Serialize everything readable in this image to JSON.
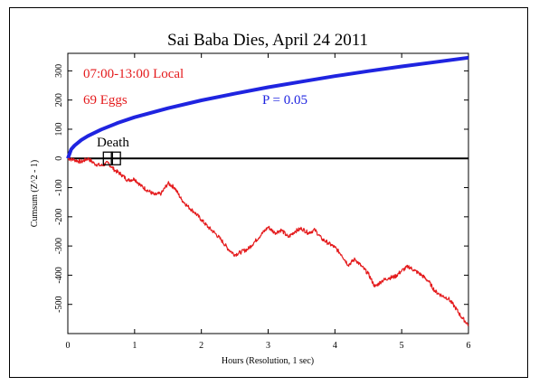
{
  "chart_data": {
    "type": "line",
    "title": "Sai Baba Dies, April 24 2011",
    "xlabel": "Hours (Resolution, 1 sec)",
    "ylabel": "Cumsum (Z^2 - 1)",
    "xlim": [
      0,
      6
    ],
    "ylim": [
      -600,
      360
    ],
    "x_ticks": [
      0,
      1,
      2,
      3,
      4,
      5,
      6
    ],
    "y_ticks": [
      -500,
      -400,
      -300,
      -200,
      -100,
      0,
      100,
      200,
      300
    ],
    "grid": false,
    "annotations": {
      "time_window": "07:00-13:00 Local",
      "eggs": "69 Eggs",
      "p_label": "P = 0.05",
      "event_label": "Death",
      "event_hours": [
        0.6,
        0.72
      ]
    },
    "colors": {
      "data_line": "#e41a1c",
      "envelope": "#1f24e0",
      "zero_line": "#000000",
      "text_red": "#e41a1c",
      "text_blue": "#1f24e0"
    },
    "series": [
      {
        "role": "data",
        "x": [
          0,
          0.1,
          0.2,
          0.3,
          0.4,
          0.5,
          0.6,
          0.7,
          0.8,
          0.9,
          1.0,
          1.1,
          1.2,
          1.3,
          1.4,
          1.5,
          1.6,
          1.7,
          1.8,
          1.9,
          2.0,
          2.1,
          2.2,
          2.3,
          2.4,
          2.5,
          2.6,
          2.7,
          2.8,
          2.9,
          3.0,
          3.1,
          3.2,
          3.3,
          3.4,
          3.5,
          3.6,
          3.7,
          3.8,
          3.9,
          4.0,
          4.1,
          4.2,
          4.3,
          4.4,
          4.5,
          4.6,
          4.7,
          4.8,
          4.9,
          5.0,
          5.1,
          5.2,
          5.3,
          5.4,
          5.5,
          5.6,
          5.7,
          5.8,
          5.9,
          6.0
        ],
        "y": [
          0,
          -5,
          -12,
          0,
          -18,
          -25,
          -15,
          -40,
          -55,
          -75,
          -70,
          -95,
          -110,
          -125,
          -120,
          -85,
          -100,
          -140,
          -165,
          -185,
          -210,
          -235,
          -255,
          -280,
          -310,
          -330,
          -320,
          -310,
          -285,
          -260,
          -235,
          -255,
          -245,
          -270,
          -250,
          -240,
          -255,
          -245,
          -275,
          -290,
          -305,
          -330,
          -365,
          -345,
          -370,
          -395,
          -440,
          -420,
          -410,
          -405,
          -385,
          -370,
          -385,
          -400,
          -420,
          -455,
          -470,
          -480,
          -510,
          -545,
          -570
        ]
      },
      {
        "role": "envelope",
        "x": [
          0,
          0.05,
          0.1,
          0.2,
          0.3,
          0.5,
          0.75,
          1.0,
          1.5,
          2.0,
          2.5,
          3.0,
          3.5,
          4.0,
          4.5,
          5.0,
          5.5,
          6.0
        ],
        "y": [
          0,
          31,
          44,
          63,
          77,
          99,
          122,
          141,
          172,
          199,
          222,
          244,
          263,
          282,
          299,
          315,
          330,
          345
        ]
      }
    ]
  }
}
